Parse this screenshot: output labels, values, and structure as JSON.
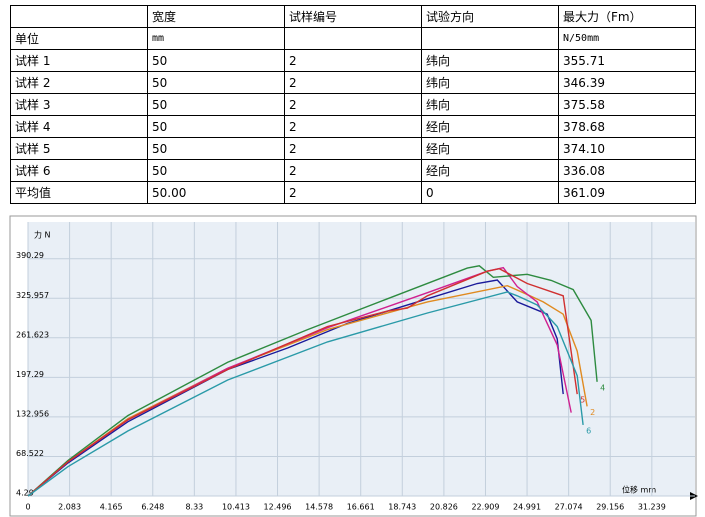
{
  "table": {
    "header": [
      null,
      "宽度",
      "试样编号",
      "试验方向",
      "最大力（Fm）"
    ],
    "rows": [
      [
        "单位",
        "mm",
        null,
        null,
        "N/50mm"
      ],
      [
        "试样 1",
        "50",
        "2",
        "纬向",
        "355.71"
      ],
      [
        "试样 2",
        "50",
        "2",
        "纬向",
        "346.39"
      ],
      [
        "试样 3",
        "50",
        "2",
        "纬向",
        "375.58"
      ],
      [
        "试样 4",
        "50",
        "2",
        "经向",
        "378.68"
      ],
      [
        "试样 5",
        "50",
        "2",
        "经向",
        "374.10"
      ],
      [
        "试样 6",
        "50",
        "2",
        "经向",
        "336.08"
      ],
      [
        "平均值",
        "50.00",
        "2",
        "0",
        "361.09"
      ]
    ]
  },
  "chart_data": {
    "type": "line",
    "x_label": "位移 mm",
    "y_label": "力 N",
    "xlim": [
      0,
      32.65
    ],
    "ylim": [
      4.29,
      450
    ],
    "xticks": [
      0,
      2.083,
      4.165,
      6.248,
      8.33,
      10.413,
      12.496,
      14.578,
      16.661,
      18.743,
      20.826,
      22.909,
      24.991,
      27.074,
      29.156,
      31.239
    ],
    "yticks": [
      4.29,
      68.522,
      132.956,
      197.29,
      261.623,
      325.957,
      390.29
    ],
    "grid": true,
    "series": [
      {
        "color": "#1a1a9a",
        "x": [
          0,
          2,
          5,
          10,
          13,
          16,
          20,
          22.5,
          23.5,
          24.5,
          26,
          26.5,
          26.8
        ],
        "values": [
          4.29,
          58,
          125,
          210,
          245,
          285,
          325,
          350,
          355.71,
          320,
          300,
          260,
          170
        ]
      },
      {
        "name": "2",
        "color": "#e08a20",
        "x": [
          0,
          2,
          5,
          10,
          15,
          20,
          24,
          24.8,
          25.8,
          26.8,
          27.5,
          28
        ],
        "values": [
          4.29,
          60,
          130,
          212,
          275,
          320,
          346.39,
          335,
          320,
          300,
          240,
          150
        ]
      },
      {
        "color": "#d02090",
        "x": [
          0,
          2,
          5,
          10,
          15,
          20,
          23,
          23.8,
          24.5,
          25.5,
          26.5,
          27.2
        ],
        "values": [
          4.29,
          60,
          128,
          212,
          278,
          335,
          370,
          375.58,
          345,
          320,
          250,
          140
        ]
      },
      {
        "name": "4",
        "color": "#2e8b40",
        "x": [
          0,
          2,
          5,
          10,
          14,
          18,
          22,
          22.6,
          23.3,
          25,
          26.2,
          27.3,
          28.2,
          28.5
        ],
        "values": [
          4.29,
          62,
          135,
          222,
          275,
          325,
          375,
          378.68,
          360,
          365,
          355,
          340,
          290,
          190
        ]
      },
      {
        "name": "5",
        "color": "#d03030",
        "x": [
          0,
          2,
          5,
          10,
          15,
          18,
          19,
          20,
          23,
          23.6,
          25,
          26.8,
          27.5
        ],
        "values": [
          4.29,
          60,
          128,
          210,
          280,
          305,
          310,
          330,
          370,
          374.1,
          350,
          330,
          170
        ]
      },
      {
        "name": "6",
        "color": "#2a9aa8",
        "x": [
          0,
          2,
          5,
          10,
          15,
          20,
          24,
          24.5,
          25.5,
          26.5,
          27.5,
          27.8
        ],
        "values": [
          4.29,
          52,
          110,
          193,
          255,
          302,
          336.08,
          330,
          315,
          280,
          200,
          120
        ]
      }
    ]
  }
}
